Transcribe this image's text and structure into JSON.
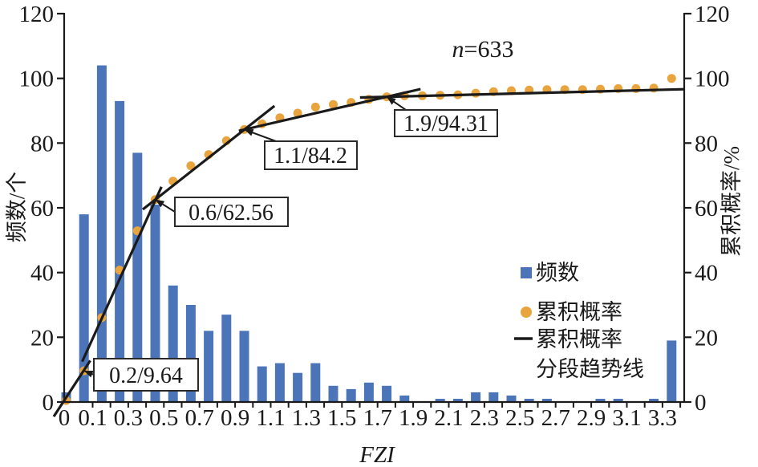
{
  "note": {
    "n_label": "n",
    "value": "=633"
  },
  "axes": {
    "x": {
      "label": "FZI",
      "tick_labels": [
        "0",
        "0.1",
        "0.3",
        "0.5",
        "0.7",
        "0.9",
        "1.1",
        "1.3",
        "1.5",
        "1.7",
        "1.9",
        "2.1",
        "2.3",
        "2.5",
        "2.7",
        "2.9",
        "3.1",
        "3.3"
      ]
    },
    "y_left": {
      "label": "频数/个",
      "ticks": [
        0,
        20,
        40,
        60,
        80,
        100,
        120
      ]
    },
    "y_right": {
      "label": "累积概率/%",
      "ticks": [
        0,
        20,
        40,
        60,
        80,
        100,
        120
      ]
    }
  },
  "legend": {
    "items": [
      {
        "label": "频数",
        "marker": "square",
        "color": "#4C74B8"
      },
      {
        "label": "累积概率",
        "marker": "dot",
        "color": "#E8A43E"
      },
      {
        "label": "累积概率",
        "label2": "分段趋势线",
        "marker": "line",
        "color": "#1A1A1A"
      }
    ]
  },
  "annotations": [
    {
      "text": "0.2/9.64",
      "bin": 2
    },
    {
      "text": "0.6/62.56",
      "bin": 6
    },
    {
      "text": "1.1/84.2",
      "bin": 11
    },
    {
      "text": "1.9/94.31",
      "bin": 19
    }
  ],
  "chart_data": {
    "type": "bar",
    "title": "FZI frequency histogram with cumulative probability",
    "n": 633,
    "xlabel": "FZI",
    "ylabel_left": "频数/个",
    "ylabel_right": "累积概率/%",
    "ylim_left": [
      0,
      120
    ],
    "ylim_right": [
      0,
      120
    ],
    "bin_width": 0.1,
    "bin_upper_edges": [
      0.1,
      0.2,
      0.3,
      0.4,
      0.5,
      0.6,
      0.7,
      0.8,
      0.9,
      1.0,
      1.1,
      1.2,
      1.3,
      1.4,
      1.5,
      1.6,
      1.7,
      1.8,
      1.9,
      2.0,
      2.1,
      2.2,
      2.3,
      2.4,
      2.5,
      2.6,
      2.7,
      2.8,
      2.9,
      3.0,
      3.1,
      3.2,
      3.3,
      3.4,
      3.5
    ],
    "series": [
      {
        "name": "频数",
        "type": "bar",
        "color": "#4C74B8",
        "values": [
          3,
          58,
          104,
          93,
          77,
          61,
          36,
          30,
          22,
          27,
          22,
          11,
          12,
          9,
          12,
          5,
          4,
          6,
          5,
          2,
          0,
          1,
          1,
          3,
          3,
          2,
          1,
          1,
          0,
          0,
          1,
          1,
          0,
          1,
          19
        ]
      },
      {
        "name": "累积概率",
        "type": "scatter",
        "color": "#E8A43E",
        "values_pct": [
          0.47,
          9.64,
          26.07,
          40.76,
          52.92,
          62.56,
          68.25,
          72.99,
          76.46,
          80.73,
          84.2,
          85.94,
          87.84,
          89.26,
          91.15,
          91.94,
          92.58,
          93.52,
          94.31,
          94.63,
          94.63,
          94.79,
          94.94,
          95.42,
          95.89,
          96.21,
          96.37,
          96.52,
          96.52,
          96.52,
          96.68,
          96.84,
          96.84,
          97.0,
          100.0
        ]
      },
      {
        "name": "累积概率分段趋势线",
        "type": "line-segments",
        "color": "#1A1A1A",
        "segments": [
          [
            -0.07,
            -4.5,
            0.135,
            12.8
          ],
          [
            0.09,
            12.5,
            0.535,
            66.5
          ],
          [
            0.43,
            59.5,
            1.17,
            91.5
          ],
          [
            0.97,
            83.8,
            1.99,
            96.7
          ],
          [
            1.65,
            94.1,
            3.47,
            96.65
          ]
        ]
      }
    ],
    "legend_position": "center-right",
    "grid": false
  }
}
